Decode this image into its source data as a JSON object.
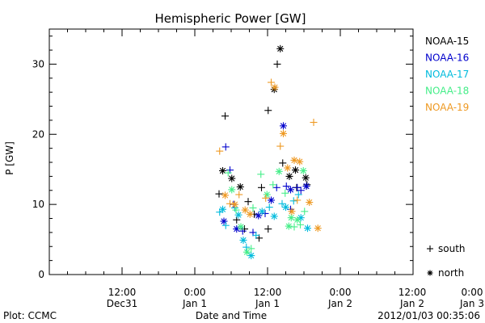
{
  "chart_data": {
    "type": "scatter",
    "title": "Hemispheric Power [GW]",
    "xlabel": "Date and Time",
    "ylabel": "P [GW]",
    "ylim": [
      0,
      35
    ],
    "xlim": [
      -24,
      36
    ],
    "yticks": [
      0,
      10,
      20,
      30
    ],
    "y_minor_step": 2,
    "x_minor_step": 3,
    "xticks": [
      {
        "x": -12,
        "line1": "12:00",
        "line2": "Dec31"
      },
      {
        "x": 0,
        "line1": "0:00",
        "line2": "Jan 1"
      },
      {
        "x": 12,
        "line1": "12:00",
        "line2": "Jan 1"
      },
      {
        "x": 24,
        "line1": "0:00",
        "line2": "Jan 2"
      },
      {
        "x": 36,
        "line1": "12:00",
        "line2": "Jan 2"
      },
      {
        "x": 48,
        "line1": "0:00",
        "line2": "Jan 3"
      }
    ],
    "x_units": "hours relative to 2012/01/01 00:00 UT",
    "legend_placement": "right",
    "marker_legend": [
      {
        "marker": "+",
        "label": "south"
      },
      {
        "marker": "*",
        "label": "north"
      }
    ],
    "series": [
      {
        "name": "NOAA-15",
        "color": "#000000",
        "points": [
          [
            4.0,
            11.5,
            "+"
          ],
          [
            5.0,
            22.6,
            "+"
          ],
          [
            4.6,
            14.8,
            "*"
          ],
          [
            6.1,
            13.7,
            "*"
          ],
          [
            7.5,
            12.5,
            "*"
          ],
          [
            8.8,
            10.4,
            "+"
          ],
          [
            11.0,
            12.4,
            "+"
          ],
          [
            6.9,
            7.8,
            "+"
          ],
          [
            8.2,
            6.5,
            "+"
          ],
          [
            9.8,
            8.6,
            "+"
          ],
          [
            10.6,
            5.2,
            "+"
          ],
          [
            12.1,
            6.5,
            "+"
          ],
          [
            12.1,
            23.4,
            "+"
          ],
          [
            13.1,
            26.4,
            "*"
          ],
          [
            13.6,
            30.0,
            "+"
          ],
          [
            14.1,
            32.2,
            "*"
          ],
          [
            15.6,
            14.0,
            "*"
          ],
          [
            16.6,
            14.9,
            "*"
          ],
          [
            18.3,
            13.8,
            "*"
          ],
          [
            18.5,
            12.8,
            "+"
          ],
          [
            16.8,
            12.4,
            "+"
          ],
          [
            14.5,
            15.9,
            "+"
          ]
        ]
      },
      {
        "name": "NOAA-16",
        "color": "#0000cc",
        "points": [
          [
            5.1,
            18.2,
            "+"
          ],
          [
            4.8,
            7.6,
            "*"
          ],
          [
            5.8,
            14.9,
            "+"
          ],
          [
            6.4,
            10.0,
            "+"
          ],
          [
            6.9,
            6.5,
            "*"
          ],
          [
            7.9,
            6.2,
            "+"
          ],
          [
            9.6,
            6.0,
            "+"
          ],
          [
            10.5,
            8.4,
            "*"
          ],
          [
            11.6,
            8.7,
            "+"
          ],
          [
            12.6,
            10.6,
            "*"
          ],
          [
            13.5,
            12.4,
            "+"
          ],
          [
            14.6,
            21.2,
            "*"
          ],
          [
            15.1,
            12.6,
            "+"
          ],
          [
            15.8,
            12.1,
            "*"
          ],
          [
            16.9,
            12.4,
            "+"
          ],
          [
            17.5,
            12.0,
            "+"
          ],
          [
            18.4,
            12.6,
            "*"
          ],
          [
            15.8,
            9.3,
            "+"
          ]
        ]
      },
      {
        "name": "NOAA-17",
        "color": "#00bbdd",
        "points": [
          [
            4.1,
            8.9,
            "+"
          ],
          [
            4.6,
            9.3,
            "*"
          ],
          [
            5.1,
            7.0,
            "+"
          ],
          [
            6.6,
            9.5,
            "+"
          ],
          [
            7.2,
            8.5,
            "*"
          ],
          [
            8.0,
            4.9,
            "*"
          ],
          [
            8.5,
            3.9,
            "+"
          ],
          [
            9.3,
            2.7,
            "*"
          ],
          [
            10.1,
            5.6,
            "+"
          ],
          [
            11.1,
            9.0,
            "*"
          ],
          [
            12.3,
            9.6,
            "+"
          ],
          [
            13.1,
            8.3,
            "*"
          ],
          [
            14.4,
            10.1,
            "+"
          ],
          [
            15.0,
            9.6,
            "*"
          ],
          [
            16.3,
            10.5,
            "+"
          ],
          [
            17.5,
            8.1,
            "*"
          ],
          [
            18.6,
            6.6,
            "*"
          ],
          [
            17.1,
            11.4,
            "+"
          ]
        ]
      },
      {
        "name": "NOAA-18",
        "color": "#44ee88",
        "points": [
          [
            5.5,
            14.5,
            "+"
          ],
          [
            6.1,
            12.1,
            "*"
          ],
          [
            6.8,
            9.2,
            "+"
          ],
          [
            7.6,
            6.8,
            "*"
          ],
          [
            8.6,
            3.2,
            "*"
          ],
          [
            9.3,
            3.7,
            "+"
          ],
          [
            9.6,
            9.5,
            "+"
          ],
          [
            10.9,
            14.3,
            "+"
          ],
          [
            11.9,
            11.4,
            "*"
          ],
          [
            12.9,
            12.8,
            "+"
          ],
          [
            13.9,
            14.7,
            "*"
          ],
          [
            14.9,
            11.6,
            "+"
          ],
          [
            15.9,
            8.1,
            "*"
          ],
          [
            16.4,
            6.8,
            "+"
          ],
          [
            16.9,
            7.8,
            "*"
          ],
          [
            17.4,
            7.1,
            "+"
          ],
          [
            17.9,
            14.8,
            "*"
          ],
          [
            18.1,
            9.0,
            "+"
          ],
          [
            15.5,
            6.9,
            "*"
          ]
        ]
      },
      {
        "name": "NOAA-19",
        "color": "#ee9922",
        "points": [
          [
            4.1,
            17.6,
            "+"
          ],
          [
            5.0,
            11.3,
            "*"
          ],
          [
            5.8,
            10.1,
            "+"
          ],
          [
            6.6,
            10.0,
            "*"
          ],
          [
            7.3,
            11.4,
            "+"
          ],
          [
            8.3,
            9.2,
            "*"
          ],
          [
            9.1,
            8.6,
            "*"
          ],
          [
            12.6,
            27.4,
            "+"
          ],
          [
            13.2,
            26.7,
            "*"
          ],
          [
            14.1,
            18.3,
            "+"
          ],
          [
            14.6,
            20.1,
            "*"
          ],
          [
            15.3,
            15.2,
            "*"
          ],
          [
            16.4,
            16.3,
            "*"
          ],
          [
            17.3,
            16.1,
            "*"
          ],
          [
            18.9,
            10.3,
            "*"
          ],
          [
            19.6,
            21.7,
            "+"
          ],
          [
            20.3,
            6.6,
            "*"
          ],
          [
            16.9,
            10.6,
            "+"
          ],
          [
            16.0,
            9.0,
            "*"
          ],
          [
            11.7,
            10.9,
            "+"
          ]
        ]
      }
    ]
  },
  "footer": {
    "left": "Plot: CCMC",
    "right": "2012/01/03 00:35:06"
  }
}
